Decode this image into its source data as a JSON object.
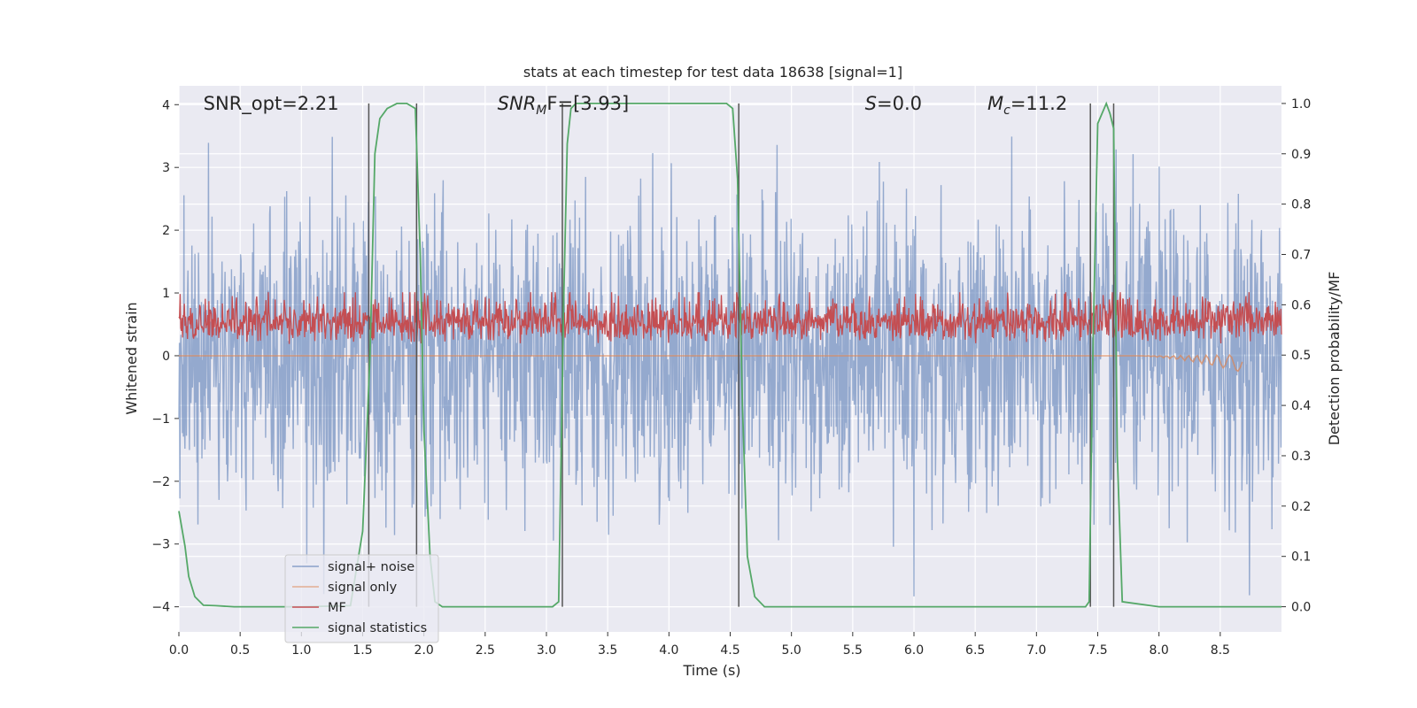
{
  "chart_data": {
    "type": "line",
    "title": "stats at each timestep for test data 18638 [signal=1]",
    "xlabel": "Time (s)",
    "ylabel": "Whitened strain",
    "ylabel_right": "Detection probability/MF",
    "xlim": [
      0.0,
      9.0
    ],
    "ylim": [
      -4.4,
      4.3
    ],
    "ylim_right": [
      -0.05,
      1.035
    ],
    "x_ticks": [
      0.0,
      0.5,
      1.0,
      1.5,
      2.0,
      2.5,
      3.0,
      3.5,
      4.0,
      4.5,
      5.0,
      5.5,
      6.0,
      6.5,
      7.0,
      7.5,
      8.0,
      8.5
    ],
    "x_tick_labels": [
      "0.0",
      "0.5",
      "1.0",
      "1.5",
      "2.0",
      "2.5",
      "3.0",
      "3.5",
      "4.0",
      "4.5",
      "5.0",
      "5.5",
      "6.0",
      "6.5",
      "7.0",
      "7.5",
      "8.0",
      "8.5"
    ],
    "y_ticks": [
      4,
      3,
      2,
      1,
      0,
      -1,
      -2,
      -3,
      -4
    ],
    "y_tick_labels": [
      "4",
      "3",
      "2",
      "1",
      "0",
      "−1",
      "−2",
      "−3",
      "−4"
    ],
    "y_right_ticks": [
      1.0,
      0.9,
      0.8,
      0.7,
      0.6,
      0.5,
      0.4,
      0.3,
      0.2,
      0.1,
      0.0
    ],
    "y_right_tick_labels": [
      "1.0",
      "0.9",
      "0.8",
      "0.7",
      "0.6",
      "0.5",
      "0.4",
      "0.3",
      "0.2",
      "0.1",
      "0.0"
    ],
    "grid": true,
    "legend_position": "lower-left",
    "annotations": [
      {
        "kind": "plain",
        "text": "SNR_opt=2.21",
        "x": 0.2
      },
      {
        "kind": "sub",
        "main": "SNR",
        "sub": "M",
        "rest": "F=[3.93]",
        "x": 2.6
      },
      {
        "kind": "italic",
        "main": "S",
        "rest": "=0.0",
        "x": 5.6
      },
      {
        "kind": "sub",
        "main": "M",
        "sub": "c",
        "rest": "=11.2",
        "x": 6.6
      }
    ],
    "vertical_markers": [
      1.55,
      1.94,
      3.13,
      4.57,
      7.44,
      7.63
    ],
    "series": [
      {
        "name": "signal+ noise",
        "color": "#4c72b0",
        "kind": "noise",
        "amplitude_envelope": [
          [
            -4.0,
            3.6
          ]
        ]
      },
      {
        "name": "signal only",
        "color": "#dd8452",
        "kind": "chirp",
        "x_range": [
          7.8,
          8.68
        ],
        "y_range": [
          -0.3,
          0.15
        ]
      },
      {
        "name": "MF",
        "color": "#c44e52",
        "kind": "mf",
        "y_range": [
          0.0,
          1.0
        ]
      },
      {
        "name": "signal statistics",
        "color": "#55a868",
        "kind": "probability",
        "x": [
          0.0,
          0.05,
          0.08,
          0.13,
          0.2,
          0.3,
          0.45,
          1.0,
          1.4,
          1.5,
          1.56,
          1.6,
          1.64,
          1.7,
          1.78,
          1.86,
          1.93,
          1.97,
          2.0,
          2.05,
          2.09,
          2.15,
          2.3,
          3.05,
          3.1,
          3.14,
          3.17,
          3.2,
          3.24,
          3.3,
          3.4,
          4.3,
          4.47,
          4.52,
          4.56,
          4.6,
          4.64,
          4.7,
          4.78,
          4.9,
          5.5,
          6.2,
          6.4,
          7.4,
          7.43,
          7.46,
          7.5,
          7.57,
          7.6,
          7.63,
          7.66,
          7.7,
          8.0,
          9.0
        ],
        "y": [
          0.19,
          0.12,
          0.06,
          0.02,
          0.003,
          0.002,
          0.0,
          0.0,
          0.002,
          0.15,
          0.5,
          0.9,
          0.97,
          0.99,
          1.0,
          1.0,
          0.99,
          0.7,
          0.35,
          0.1,
          0.01,
          0.0,
          0.0,
          0.0,
          0.01,
          0.6,
          0.92,
          0.99,
          1.0,
          1.0,
          1.0,
          1.0,
          1.0,
          0.99,
          0.85,
          0.4,
          0.1,
          0.02,
          0.0,
          0.0,
          0.0,
          0.0,
          0.0,
          0.0,
          0.01,
          0.5,
          0.96,
          1.0,
          0.98,
          0.95,
          0.3,
          0.01,
          0.0,
          0.0
        ]
      }
    ]
  }
}
